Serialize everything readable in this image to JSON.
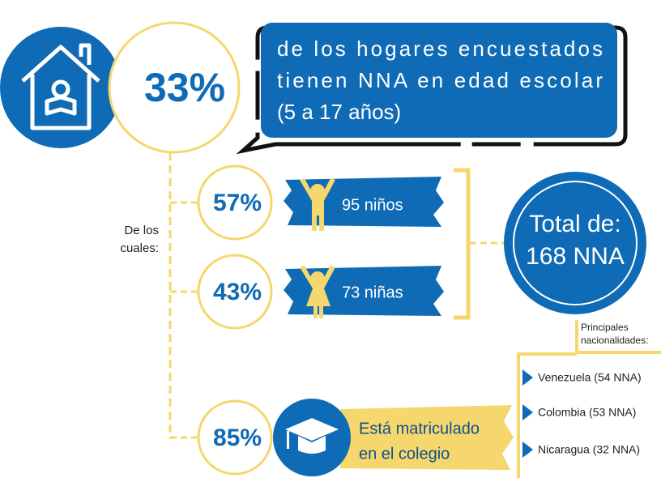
{
  "headline": {
    "value_label": "33%",
    "text_lines": [
      "de los hogares encuestados",
      "tienen NNA en edad escolar",
      "(5 a 17 años)"
    ]
  },
  "subgroup_label": [
    "De los",
    "cuales:"
  ],
  "groups": [
    {
      "percent": "57%",
      "label": "95 niños"
    },
    {
      "percent": "43%",
      "label": "73 niñas"
    }
  ],
  "total": [
    "Total de:",
    "168 NNA"
  ],
  "nationalities": {
    "title": [
      "Principales",
      "nacionalidades:"
    ],
    "items": [
      "Venezuela (54 NNA)",
      "Colombia (53 NNA)",
      "Nicaragua (32 NNA)"
    ]
  },
  "enrollment": {
    "percent": "85%",
    "text_lines": [
      "Está matriculado",
      "en el colegio"
    ]
  }
}
